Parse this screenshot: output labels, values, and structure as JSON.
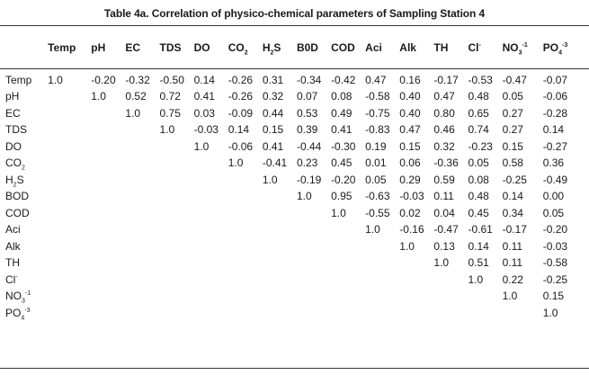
{
  "title": "Table 4a. Correlation of physico-chemical parameters of Sampling Station 4",
  "columns": [
    {
      "base": "",
      "sub": "",
      "sup": ""
    },
    {
      "base": "Temp",
      "sub": "",
      "sup": ""
    },
    {
      "base": "pH",
      "sub": "",
      "sup": ""
    },
    {
      "base": "EC",
      "sub": "",
      "sup": ""
    },
    {
      "base": "TDS",
      "sub": "",
      "sup": ""
    },
    {
      "base": "DO",
      "sub": "",
      "sup": ""
    },
    {
      "base": "CO",
      "sub": "2",
      "sup": ""
    },
    {
      "base": "H",
      "sub": "2",
      "sup": "",
      "tail": "S"
    },
    {
      "base": "B0D",
      "sub": "",
      "sup": ""
    },
    {
      "base": "COD",
      "sub": "",
      "sup": ""
    },
    {
      "base": "Aci",
      "sub": "",
      "sup": ""
    },
    {
      "base": "Alk",
      "sub": "",
      "sup": ""
    },
    {
      "base": "TH",
      "sub": "",
      "sup": ""
    },
    {
      "base": "Cl",
      "sub": "",
      "sup": "-"
    },
    {
      "base": "NO",
      "sub": "3",
      "sup": "-1"
    },
    {
      "base": "PO",
      "sub": "4",
      "sup": "-3"
    }
  ],
  "rows": [
    {
      "label": {
        "base": "Temp",
        "sub": "",
        "sup": ""
      },
      "values": [
        "1.0",
        "-0.20",
        "-0.32",
        "-0.50",
        "0.14",
        "-0.26",
        "0.31",
        "-0.34",
        "-0.42",
        "0.47",
        "0.16",
        "-0.17",
        "-0.53",
        "-0.47",
        "-0.07"
      ]
    },
    {
      "label": {
        "base": "pH",
        "sub": "",
        "sup": ""
      },
      "values": [
        "",
        "1.0",
        "0.52",
        "0.72",
        "0.41",
        "-0.26",
        "0.32",
        "0.07",
        "0.08",
        "-0.58",
        "0.40",
        "0.47",
        "0.48",
        "0.05",
        "-0.06"
      ]
    },
    {
      "label": {
        "base": "EC",
        "sub": "",
        "sup": ""
      },
      "values": [
        "",
        "",
        "1.0",
        "0.75",
        "0.03",
        "-0.09",
        "0.44",
        "0.53",
        "0.49",
        "-0.75",
        "0.40",
        "0.80",
        "0.65",
        "0.27",
        "-0.28"
      ]
    },
    {
      "label": {
        "base": "TDS",
        "sub": "",
        "sup": ""
      },
      "values": [
        "",
        "",
        "",
        "1.0",
        "-0.03",
        "0.14",
        "0.15",
        "0.39",
        "0.41",
        "-0.83",
        "0.47",
        "0.46",
        "0.74",
        "0.27",
        "0.14"
      ]
    },
    {
      "label": {
        "base": "DO",
        "sub": "",
        "sup": ""
      },
      "values": [
        "",
        "",
        "",
        "",
        "1.0",
        "-0.06",
        "0.41",
        "-0.44",
        "-0.30",
        "0.19",
        "0.15",
        "0.32",
        "-0.23",
        "0.15",
        "-0.27"
      ]
    },
    {
      "label": {
        "base": "CO",
        "sub": "2",
        "sup": ""
      },
      "values": [
        "",
        "",
        "",
        "",
        "",
        "1.0",
        "-0.41",
        "0.23",
        "0.45",
        "0.01",
        "0.06",
        "-0.36",
        "0.05",
        "0.58",
        "0.36"
      ]
    },
    {
      "label": {
        "base": "H",
        "sub": "2",
        "sup": "",
        "tail": "S"
      },
      "values": [
        "",
        "",
        "",
        "",
        "",
        "",
        "1.0",
        "-0.19",
        "-0.20",
        "0.05",
        "0.29",
        "0.59",
        "0.08",
        "-0.25",
        "-0.49"
      ]
    },
    {
      "label": {
        "base": "BOD",
        "sub": "",
        "sup": ""
      },
      "values": [
        "",
        "",
        "",
        "",
        "",
        "",
        "",
        "1.0",
        "0.95",
        "-0.63",
        "-0.03",
        "0.11",
        "0.48",
        "0.14",
        "0.00"
      ]
    },
    {
      "label": {
        "base": "COD",
        "sub": "",
        "sup": ""
      },
      "values": [
        "",
        "",
        "",
        "",
        "",
        "",
        "",
        "",
        "1.0",
        "-0.55",
        "0.02",
        "0.04",
        "0.45",
        "0.34",
        "0.05"
      ]
    },
    {
      "label": {
        "base": "Aci",
        "sub": "",
        "sup": ""
      },
      "values": [
        "",
        "",
        "",
        "",
        "",
        "",
        "",
        "",
        "",
        "1.0",
        "-0.16",
        "-0.47",
        "-0.61",
        "-0.17",
        "-0.20"
      ]
    },
    {
      "label": {
        "base": "Alk",
        "sub": "",
        "sup": ""
      },
      "values": [
        "",
        "",
        "",
        "",
        "",
        "",
        "",
        "",
        "",
        "",
        "1.0",
        "0.13",
        "0.14",
        "0.11",
        "-0.03"
      ]
    },
    {
      "label": {
        "base": "TH",
        "sub": "",
        "sup": ""
      },
      "values": [
        "",
        "",
        "",
        "",
        "",
        "",
        "",
        "",
        "",
        "",
        "",
        "1.0",
        "0.51",
        "0.11",
        "-0.58"
      ]
    },
    {
      "label": {
        "base": "Cl",
        "sub": "",
        "sup": "-"
      },
      "values": [
        "",
        "",
        "",
        "",
        "",
        "",
        "",
        "",
        "",
        "",
        "",
        "",
        "1.0",
        "0.22",
        "-0.25"
      ]
    },
    {
      "label": {
        "base": "NO",
        "sub": "3",
        "sup": "-1"
      },
      "values": [
        "",
        "",
        "",
        "",
        "",
        "",
        "",
        "",
        "",
        "",
        "",
        "",
        "",
        "1.0",
        "0.15"
      ]
    },
    {
      "label": {
        "base": "PO",
        "sub": "4",
        "sup": "-3"
      },
      "values": [
        "",
        "",
        "",
        "",
        "",
        "",
        "",
        "",
        "",
        "",
        "",
        "",
        "",
        "",
        "1.0"
      ]
    }
  ]
}
